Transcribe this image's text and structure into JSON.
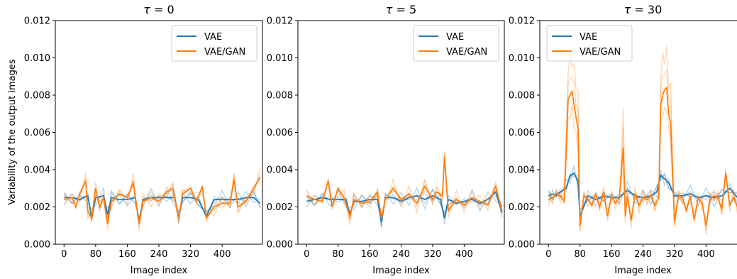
{
  "figure": {
    "ylabel": "Variability of the output images",
    "xlabel": "Image index",
    "legend_labels": [
      "VAE",
      "VAE/GAN"
    ]
  },
  "colors": {
    "VAE": "#1f77b4",
    "VAE/GAN": "#ff7f0e"
  },
  "chart_data": [
    {
      "type": "line",
      "title_prefix": "τ",
      "title_sep": " = ",
      "title_value": "0",
      "xlabel": "Image index",
      "ylabel": "Variability of the output images",
      "xlim": [
        -22,
        502
      ],
      "ylim": [
        0,
        0.012
      ],
      "xticks": [
        0,
        80,
        160,
        240,
        320,
        400
      ],
      "yticks": [
        0.0,
        0.002,
        0.004,
        0.006,
        0.008,
        0.01,
        0.012
      ],
      "ytick_labels": [
        "0.000",
        "0.002",
        "0.004",
        "0.006",
        "0.008",
        "0.010",
        "0.012"
      ],
      "legend_position": "top-right",
      "series": [
        {
          "name": "VAE",
          "x": [
            0,
            20,
            40,
            60,
            70,
            80,
            100,
            110,
            120,
            140,
            160,
            180,
            190,
            200,
            220,
            240,
            260,
            280,
            290,
            300,
            320,
            340,
            360,
            380,
            400,
            420,
            440,
            460,
            480,
            496
          ],
          "values": [
            0.0025,
            0.0025,
            0.0024,
            0.0026,
            0.0014,
            0.0025,
            0.0026,
            0.0016,
            0.0025,
            0.0024,
            0.0024,
            0.0025,
            0.0012,
            0.0024,
            0.0025,
            0.0025,
            0.0025,
            0.0025,
            0.0014,
            0.0025,
            0.0025,
            0.0024,
            0.0015,
            0.0024,
            0.0024,
            0.0024,
            0.0024,
            0.0025,
            0.0025,
            0.0022
          ]
        },
        {
          "name": "VAE/GAN",
          "x": [
            0,
            20,
            30,
            40,
            55,
            60,
            70,
            80,
            90,
            100,
            110,
            120,
            140,
            160,
            175,
            190,
            200,
            220,
            240,
            260,
            275,
            290,
            300,
            320,
            335,
            350,
            360,
            380,
            400,
            420,
            430,
            440,
            460,
            480,
            496
          ],
          "values": [
            0.0024,
            0.0025,
            0.002,
            0.0027,
            0.0034,
            0.0018,
            0.0014,
            0.003,
            0.002,
            0.0025,
            0.0011,
            0.0023,
            0.0027,
            0.0025,
            0.0033,
            0.0011,
            0.0023,
            0.0025,
            0.0023,
            0.0028,
            0.003,
            0.0014,
            0.0027,
            0.003,
            0.0023,
            0.0031,
            0.0014,
            0.002,
            0.0022,
            0.0022,
            0.0035,
            0.002,
            0.0023,
            0.003,
            0.0036
          ]
        }
      ]
    },
    {
      "type": "line",
      "title_prefix": "τ",
      "title_sep": " = ",
      "title_value": "5",
      "xlabel": "Image index",
      "xlim": [
        -22,
        502
      ],
      "ylim": [
        0,
        0.012
      ],
      "xticks": [
        0,
        80,
        160,
        240,
        320,
        400
      ],
      "yticks": [
        0.0,
        0.002,
        0.004,
        0.006,
        0.008,
        0.01,
        0.012
      ],
      "ytick_labels": [
        "0.000",
        "0.002",
        "0.004",
        "0.006",
        "0.008",
        "0.010",
        "0.012"
      ],
      "legend_position": "top-right",
      "series": [
        {
          "name": "VAE",
          "x": [
            0,
            20,
            40,
            60,
            80,
            100,
            110,
            120,
            140,
            160,
            180,
            190,
            200,
            220,
            240,
            260,
            280,
            300,
            320,
            340,
            350,
            360,
            380,
            400,
            420,
            440,
            460,
            480,
            496
          ],
          "values": [
            0.0023,
            0.0024,
            0.0025,
            0.0024,
            0.0024,
            0.0024,
            0.0016,
            0.0023,
            0.0023,
            0.0024,
            0.0024,
            0.0012,
            0.0025,
            0.0025,
            0.0023,
            0.0025,
            0.0026,
            0.0024,
            0.0026,
            0.0024,
            0.0014,
            0.0024,
            0.0022,
            0.0023,
            0.0024,
            0.0022,
            0.0024,
            0.0028,
            0.0017
          ]
        },
        {
          "name": "VAE/GAN",
          "x": [
            0,
            20,
            40,
            55,
            65,
            80,
            95,
            110,
            120,
            140,
            160,
            180,
            190,
            200,
            220,
            240,
            260,
            280,
            300,
            320,
            330,
            345,
            350,
            360,
            380,
            400,
            420,
            440,
            460,
            480,
            496
          ],
          "values": [
            0.0026,
            0.0024,
            0.0023,
            0.0034,
            0.002,
            0.003,
            0.0025,
            0.0015,
            0.0024,
            0.0022,
            0.0023,
            0.0028,
            0.0014,
            0.0024,
            0.003,
            0.0024,
            0.0027,
            0.0022,
            0.0031,
            0.0024,
            0.0028,
            0.0026,
            0.0047,
            0.0018,
            0.0024,
            0.0021,
            0.0025,
            0.0023,
            0.0021,
            0.0031,
            0.0018
          ]
        }
      ]
    },
    {
      "type": "line",
      "title_prefix": "τ",
      "title_sep": " = ",
      "title_value": "30",
      "xlabel": "Image index",
      "xlim": [
        -22,
        502
      ],
      "ylim": [
        0,
        0.012
      ],
      "xticks": [
        0,
        80,
        160,
        240,
        320,
        400
      ],
      "yticks": [
        0.0,
        0.002,
        0.004,
        0.006,
        0.008,
        0.01,
        0.012
      ],
      "ytick_labels": [
        "0.000",
        "0.002",
        "0.004",
        "0.006",
        "0.008",
        "0.010",
        "0.012"
      ],
      "legend_position": "top-left",
      "series": [
        {
          "name": "VAE",
          "x": [
            0,
            10,
            20,
            30,
            45,
            55,
            65,
            75,
            80,
            100,
            120,
            140,
            160,
            180,
            200,
            220,
            240,
            260,
            275,
            285,
            295,
            305,
            320,
            340,
            360,
            380,
            400,
            420,
            440,
            460,
            480,
            496
          ],
          "values": [
            0.0026,
            0.0027,
            0.0026,
            0.0028,
            0.003,
            0.0037,
            0.0038,
            0.0034,
            0.0015,
            0.0026,
            0.0024,
            0.0026,
            0.0025,
            0.0025,
            0.0029,
            0.0026,
            0.0025,
            0.0026,
            0.0028,
            0.0037,
            0.0035,
            0.0033,
            0.0026,
            0.0026,
            0.0027,
            0.0025,
            0.0026,
            0.0025,
            0.0026,
            0.003,
            0.0025,
            0.0024
          ]
        },
        {
          "name": "VAE/GAN",
          "x": [
            0,
            10,
            20,
            30,
            40,
            50,
            55,
            60,
            65,
            70,
            75,
            80,
            90,
            100,
            110,
            120,
            130,
            140,
            150,
            160,
            170,
            180,
            190,
            195,
            200,
            210,
            220,
            230,
            240,
            250,
            260,
            270,
            280,
            285,
            290,
            295,
            300,
            305,
            310,
            320,
            330,
            340,
            350,
            360,
            370,
            380,
            390,
            400,
            410,
            420,
            430,
            440,
            450,
            460,
            470,
            480,
            496
          ],
          "values": [
            0.0024,
            0.0025,
            0.0027,
            0.0026,
            0.0023,
            0.0078,
            0.008,
            0.0082,
            0.0075,
            0.0068,
            0.0062,
            0.001,
            0.0026,
            0.0024,
            0.0021,
            0.0027,
            0.002,
            0.0028,
            0.0015,
            0.0026,
            0.0022,
            0.0025,
            0.0052,
            0.0015,
            0.0026,
            0.0013,
            0.0027,
            0.0021,
            0.0025,
            0.0024,
            0.0026,
            0.0021,
            0.0025,
            0.0075,
            0.008,
            0.0083,
            0.0084,
            0.007,
            0.0065,
            0.0012,
            0.0026,
            0.0025,
            0.0018,
            0.0026,
            0.0013,
            0.0025,
            0.0022,
            0.001,
            0.0024,
            0.0026,
            0.0025,
            0.0019,
            0.0038,
            0.0021,
            0.0025,
            0.002,
            0.0024
          ]
        }
      ]
    }
  ]
}
